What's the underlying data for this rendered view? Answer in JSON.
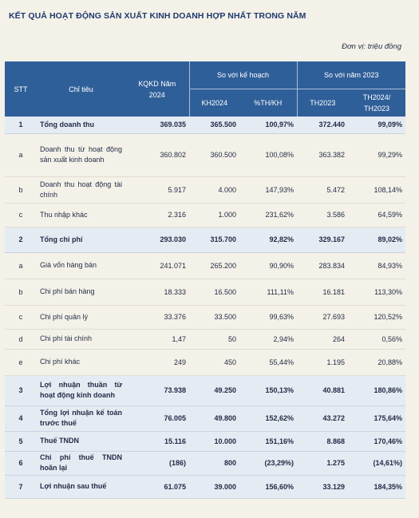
{
  "title": "KẾT QUẢ HOẠT ĐỘNG SẢN XUẤT KINH DOANH HỢP NHẤT TRONG NĂM",
  "unit": "Đơn vị: triệu đồng",
  "header": {
    "stt": "STT",
    "indicator": "Chỉ tiêu",
    "plan2024": "KQKD Năm 2024",
    "vs_plan": "So với kế hoạch",
    "vs_2023": "So với năm 2023",
    "kh2024": "KH2024",
    "pct_th_kh": "%TH/KH",
    "th2023": "TH2023",
    "th2024_th2023": "TH2024/ TH2023"
  },
  "rows": [
    {
      "stt": "1",
      "name": "Tổng doanh thu",
      "kqkd": "369.035",
      "kh": "365.500",
      "pct": "100,97%",
      "th2023": "372.440",
      "ratio": "99,09%",
      "main": true
    },
    {
      "stt": "a",
      "name": "Doanh thu từ hoạt động sản xuất kinh doanh",
      "kqkd": "360.802",
      "kh": "360.500",
      "pct": "100,08%",
      "th2023": "363.382",
      "ratio": "99,29%",
      "main": false
    },
    {
      "stt": "b",
      "name": "Doanh thu hoạt động tài chính",
      "kqkd": "5.917",
      "kh": "4.000",
      "pct": "147,93%",
      "th2023": "5.472",
      "ratio": "108,14%",
      "main": false
    },
    {
      "stt": "c",
      "name": "Thu nhập khác",
      "kqkd": "2.316",
      "kh": "1.000",
      "pct": "231,62%",
      "th2023": "3.586",
      "ratio": "64,59%",
      "main": false
    },
    {
      "stt": "2",
      "name": "Tổng chi phí",
      "kqkd": "293.030",
      "kh": "315.700",
      "pct": "92,82%",
      "th2023": "329.167",
      "ratio": "89,02%",
      "main": true
    },
    {
      "stt": "a",
      "name": "Giá vốn hàng bán",
      "kqkd": "241.071",
      "kh": "265.200",
      "pct": "90,90%",
      "th2023": "283.834",
      "ratio": "84,93%",
      "main": false
    },
    {
      "stt": "b",
      "name": "Chi phí bán hàng",
      "kqkd": "18.333",
      "kh": "16.500",
      "pct": "111,11%",
      "th2023": "16.181",
      "ratio": "113,30%",
      "main": false
    },
    {
      "stt": "c",
      "name": "Chi phí quản lý",
      "kqkd": "33.376",
      "kh": "33.500",
      "pct": "99,63%",
      "th2023": "27.693",
      "ratio": "120,52%",
      "main": false
    },
    {
      "stt": "d",
      "name": "Chi phí tài chính",
      "kqkd": "1,47",
      "kh": "50",
      "pct": "2,94%",
      "th2023": "264",
      "ratio": "0,56%",
      "main": false
    },
    {
      "stt": "e",
      "name": "Chi phí khác",
      "kqkd": "249",
      "kh": "450",
      "pct": "55,44%",
      "th2023": "1.195",
      "ratio": "20,88%",
      "main": false
    },
    {
      "stt": "3",
      "name": "Lợi nhuận thuần từ hoạt động kinh doanh",
      "kqkd": "73.938",
      "kh": "49.250",
      "pct": "150,13%",
      "th2023": "40.881",
      "ratio": "180,86%",
      "main": true
    },
    {
      "stt": "4",
      "name": "Tổng lợi nhuận kế toán trước thuế",
      "kqkd": "76.005",
      "kh": "49.800",
      "pct": "152,62%",
      "th2023": "43.272",
      "ratio": "175,64%",
      "main": true
    },
    {
      "stt": "5",
      "name": "Thuế TNDN",
      "kqkd": "15.116",
      "kh": "10.000",
      "pct": "151,16%",
      "th2023": "8.868",
      "ratio": "170,46%",
      "main": true
    },
    {
      "stt": "6",
      "name": "Chi phí thuế TNDN hoãn lại",
      "kqkd": "(186)",
      "kh": "800",
      "pct": "(23,29%)",
      "th2023": "1.275",
      "ratio": "(14,61%)",
      "main": true
    },
    {
      "stt": "7",
      "name": "Lợi nhuận sau thuế",
      "kqkd": "61.075",
      "kh": "39.000",
      "pct": "156,60%",
      "th2023": "33.129",
      "ratio": "184,35%",
      "main": true
    }
  ]
}
